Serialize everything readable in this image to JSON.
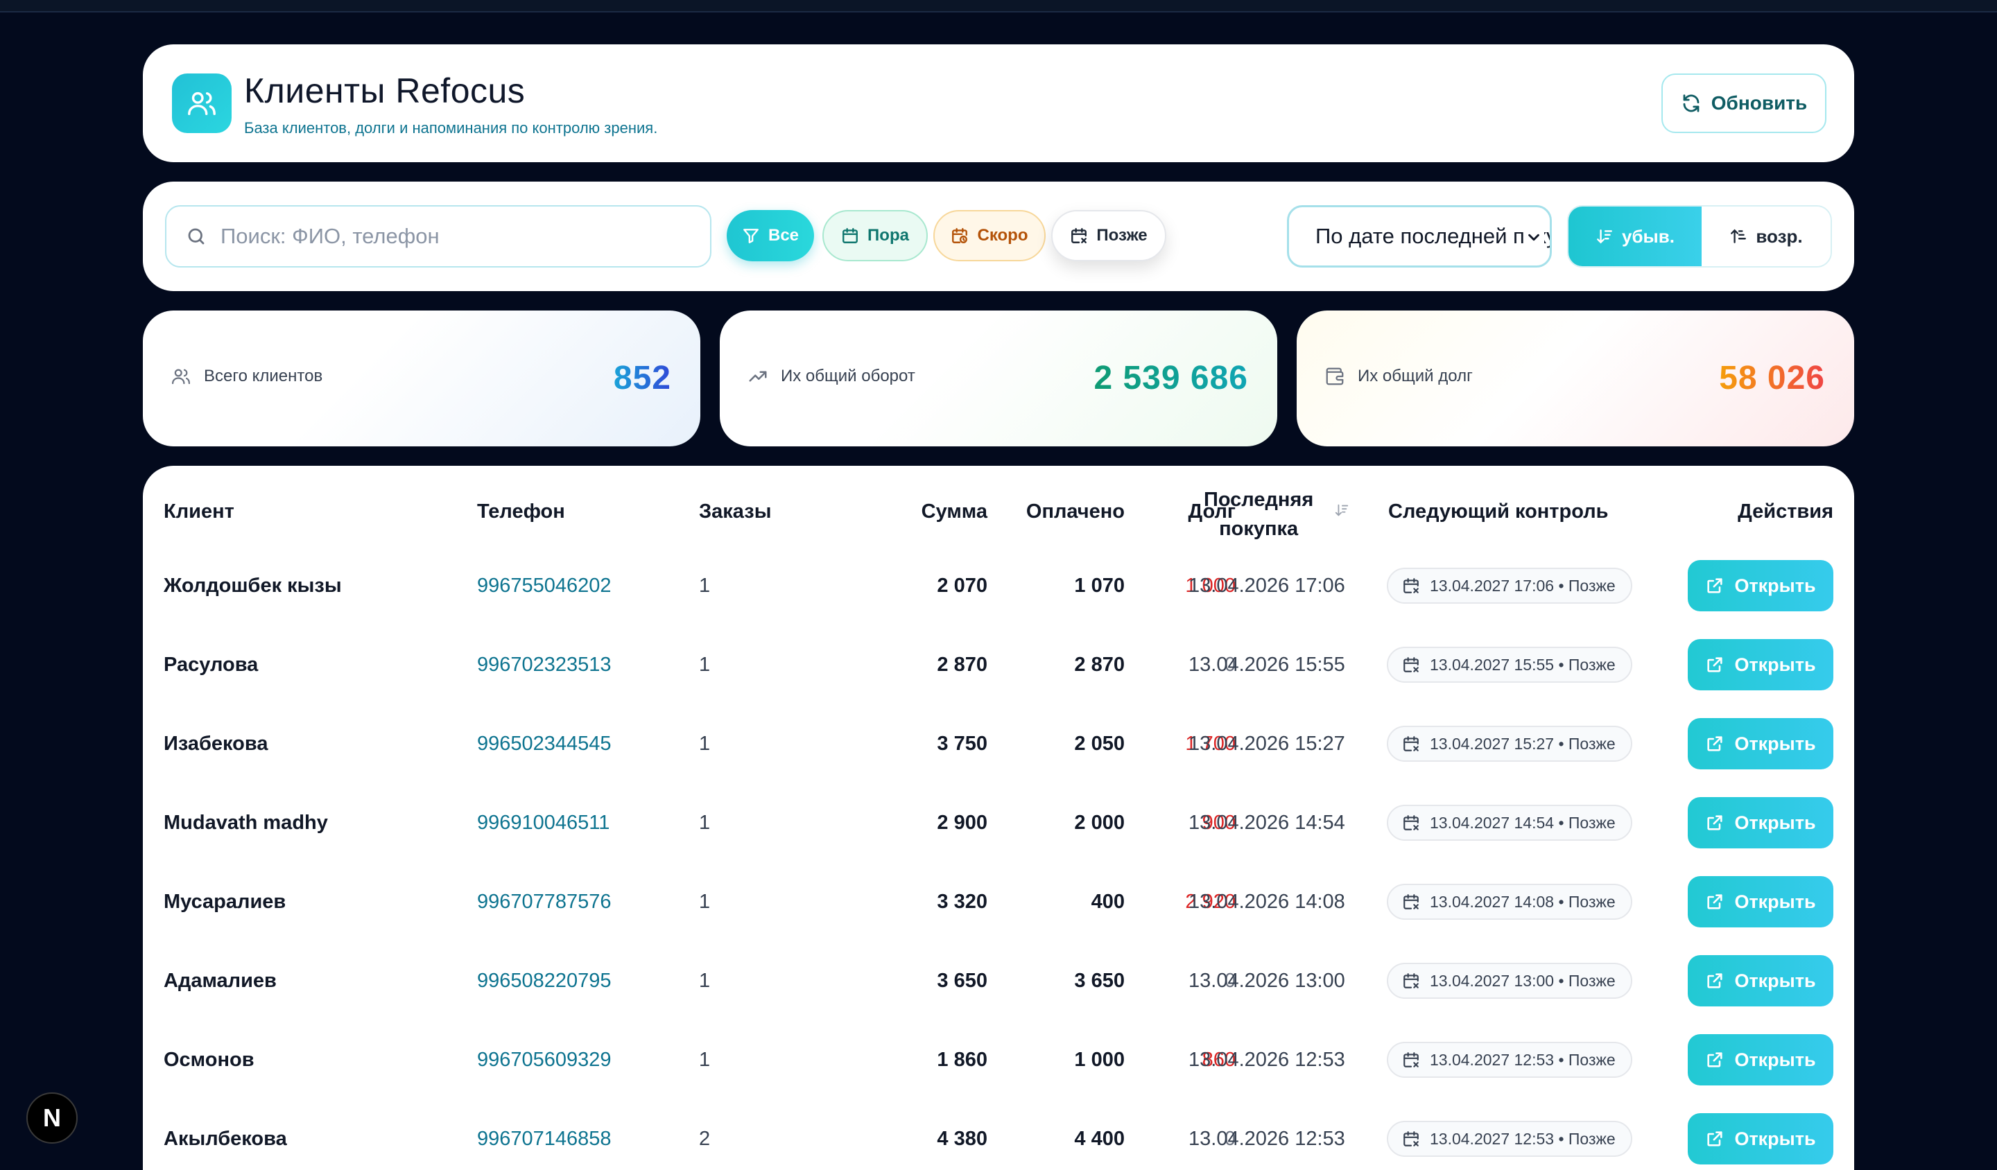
{
  "header": {
    "title": "Клиенты Refocus",
    "subtitle": "База клиентов, долги и напоминания по контролю зрения.",
    "refresh_label": "Обновить"
  },
  "filters": {
    "search_placeholder": "Поиск: ФИО, телефон",
    "chips": [
      {
        "label": "Все",
        "icon": "filter-icon",
        "active": true
      },
      {
        "label": "Пора",
        "icon": "calendar-icon"
      },
      {
        "label": "Скоро",
        "icon": "calendar-clock-icon"
      },
      {
        "label": "Позже",
        "icon": "calendar-x-icon"
      }
    ],
    "sort_value": "По дате последней покупки",
    "order_desc": "убыв.",
    "order_asc": "возр."
  },
  "stats": [
    {
      "label": "Всего клиентов",
      "value": "852",
      "icon": "users-icon"
    },
    {
      "label": "Их общий оборот",
      "value": "2 539 686",
      "icon": "trending-up-icon"
    },
    {
      "label": "Их общий долг",
      "value": "58 026",
      "icon": "wallet-icon"
    }
  ],
  "table": {
    "columns": {
      "client": "Клиент",
      "phone": "Телефон",
      "orders": "Заказы",
      "sum": "Сумма",
      "paid": "Оплачено",
      "debt": "Долг",
      "last_line1": "Последняя",
      "last_line2": "покупка",
      "next": "Следующий контроль",
      "actions": "Действия"
    },
    "open_label": "Открыть",
    "rows": [
      {
        "name": "Жолдошбек кызы",
        "phone": "996755046202",
        "orders": "1",
        "sum": "2 070",
        "paid": "1 070",
        "debt": "1 000",
        "last": "13.04.2026 17:06",
        "next": "13.04.2027 17:06 • Позже"
      },
      {
        "name": "Расулова",
        "phone": "996702323513",
        "orders": "1",
        "sum": "2 870",
        "paid": "2 870",
        "debt": "0",
        "last": "13.04.2026 15:55",
        "next": "13.04.2027 15:55 • Позже"
      },
      {
        "name": "Изабекова",
        "phone": "996502344545",
        "orders": "1",
        "sum": "3 750",
        "paid": "2 050",
        "debt": "1 700",
        "last": "13.04.2026 15:27",
        "next": "13.04.2027 15:27 • Позже"
      },
      {
        "name": "Mudavath madhy",
        "phone": "996910046511",
        "orders": "1",
        "sum": "2 900",
        "paid": "2 000",
        "debt": "900",
        "last": "13.04.2026 14:54",
        "next": "13.04.2027 14:54 • Позже"
      },
      {
        "name": "Мусаралиев",
        "phone": "996707787576",
        "orders": "1",
        "sum": "3 320",
        "paid": "400",
        "debt": "2 920",
        "last": "13.04.2026 14:08",
        "next": "13.04.2027 14:08 • Позже"
      },
      {
        "name": "Адамалиев",
        "phone": "996508220795",
        "orders": "1",
        "sum": "3 650",
        "paid": "3 650",
        "debt": "0",
        "last": "13.04.2026 13:00",
        "next": "13.04.2027 13:00 • Позже"
      },
      {
        "name": "Осмонов",
        "phone": "996705609329",
        "orders": "1",
        "sum": "1 860",
        "paid": "1 000",
        "debt": "860",
        "last": "13.04.2026 12:53",
        "next": "13.04.2027 12:53 • Позже"
      },
      {
        "name": "Акылбекова",
        "phone": "996707146858",
        "orders": "2",
        "sum": "4 380",
        "paid": "4 400",
        "debt": "0",
        "last": "13.04.2026 12:53",
        "next": "13.04.2027 12:53 • Позже"
      }
    ]
  },
  "fab_label": "N",
  "colors": {
    "background": "#030a1d",
    "accent": "#22c9d3",
    "debt": "#dc2626",
    "phone": "#0e7490"
  }
}
